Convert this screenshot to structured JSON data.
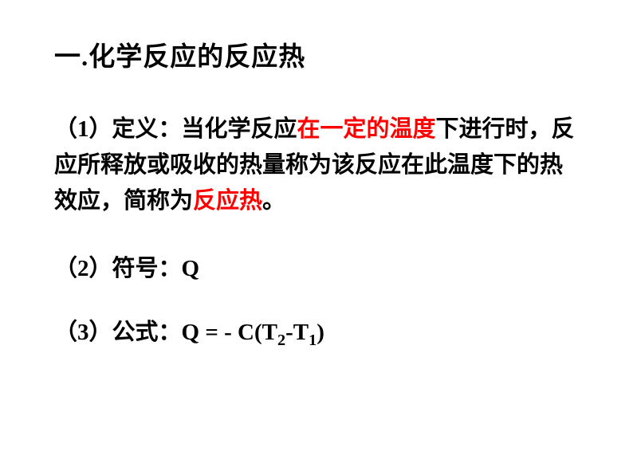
{
  "title": {
    "text": "一.化学反应的反应热",
    "fontsize": 33,
    "color": "#000000",
    "weight": "bold"
  },
  "sections": {
    "definition": {
      "label": "（1）定义：",
      "part1": "当化学反应",
      "highlight1": "在一定的温度",
      "part2": "下进行时，反应所释放或吸收的热量称为该反应在此温度下的热效应，简称为",
      "highlight2": "反应热",
      "part3": "。"
    },
    "symbol": {
      "label": "（2）符号：",
      "value": "Q"
    },
    "formula": {
      "label": "（3）公式：",
      "expression": {
        "lhs": "Q",
        "equals": " = ",
        "rhs_prefix": "- C(T",
        "sub1": "2",
        "mid": "-T",
        "sub2": "1",
        "suffix": ")"
      }
    }
  },
  "colors": {
    "text": "#000000",
    "highlight": "#ff0000",
    "background": "#ffffff"
  },
  "typography": {
    "title_fontsize": 33,
    "body_fontsize": 29,
    "line_height": 1.55,
    "weight": "bold"
  }
}
